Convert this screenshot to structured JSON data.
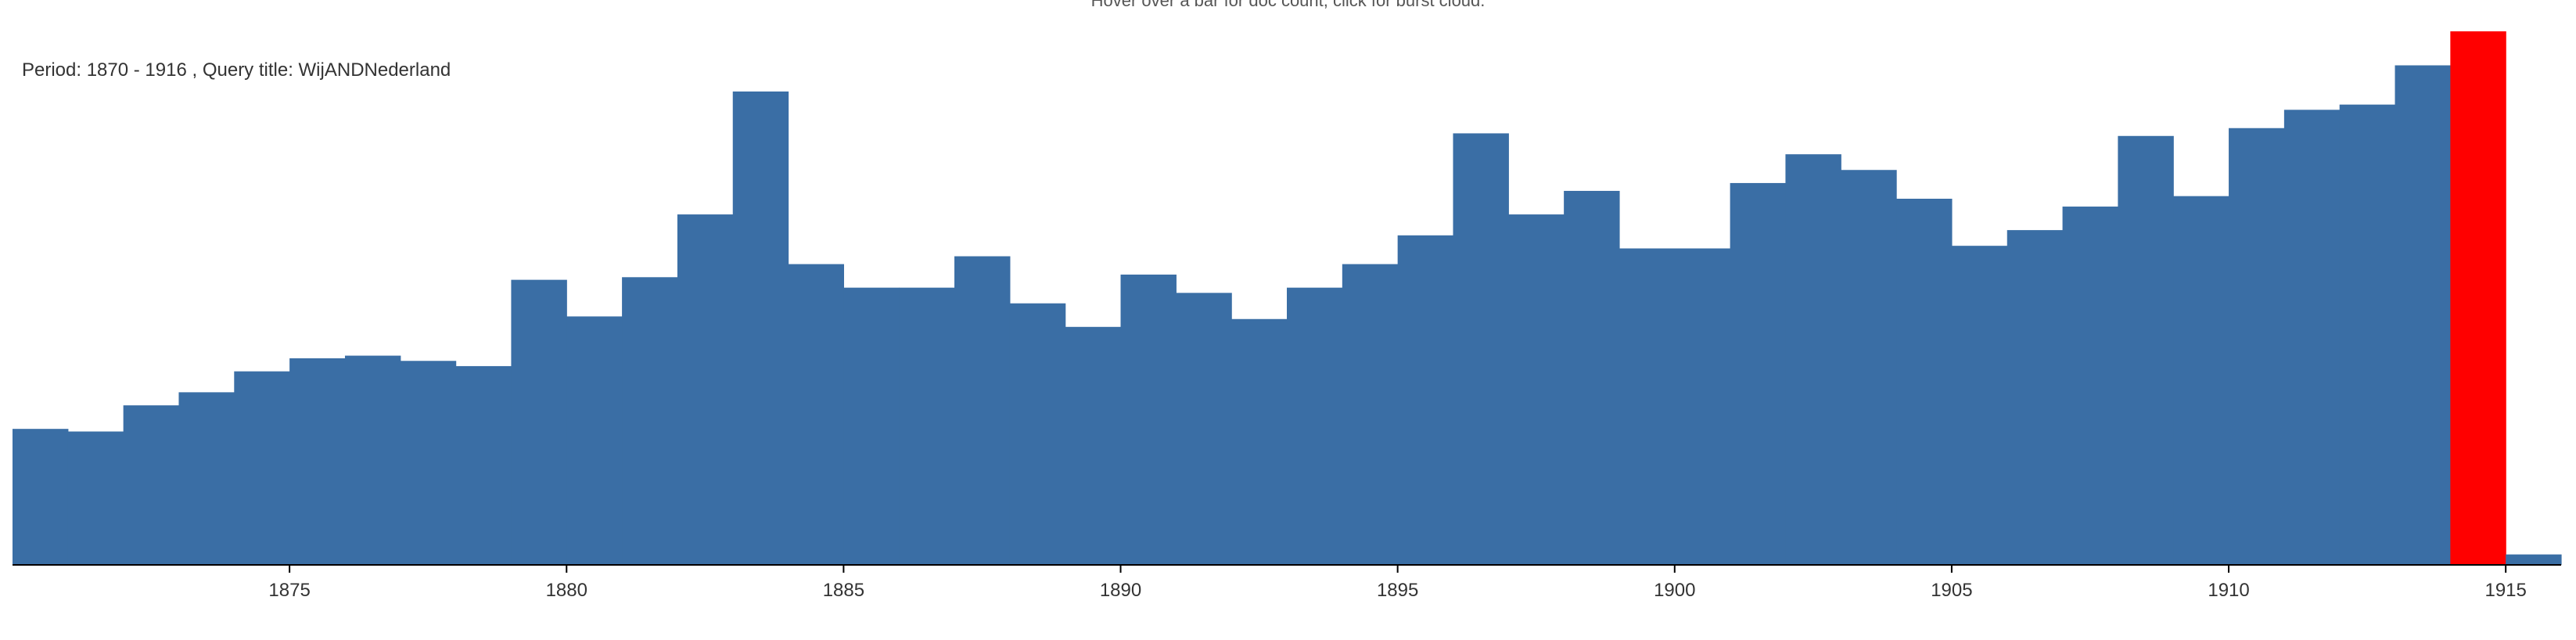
{
  "header": {
    "hint_text": "Hover over a bar for doc count, click for burst cloud.",
    "period_text": "Period: 1870 - 1916 , Query title: WijANDNederland"
  },
  "colors": {
    "bar": "#3a6ea5",
    "highlight": "#ff0000",
    "axis": "#000000"
  },
  "chart_data": {
    "type": "bar",
    "title": "",
    "xlabel": "",
    "ylabel": "",
    "x": [
      1870,
      1871,
      1872,
      1873,
      1874,
      1875,
      1876,
      1877,
      1878,
      1879,
      1880,
      1881,
      1882,
      1883,
      1884,
      1885,
      1886,
      1887,
      1888,
      1889,
      1890,
      1891,
      1892,
      1893,
      1894,
      1895,
      1896,
      1897,
      1898,
      1899,
      1900,
      1901,
      1902,
      1903,
      1904,
      1905,
      1906,
      1907,
      1908,
      1909,
      1910,
      1911,
      1912,
      1913,
      1914,
      1915
    ],
    "values": [
      26,
      25.5,
      30.5,
      33,
      37,
      39.5,
      40,
      39,
      38,
      54.5,
      47.5,
      55,
      67,
      90.5,
      57.5,
      53,
      53,
      59,
      50,
      45.5,
      55.5,
      52,
      47,
      53,
      57.5,
      63,
      82.5,
      67,
      71.5,
      60.5,
      60.5,
      73,
      78.5,
      75.5,
      70,
      61,
      64,
      68.5,
      82,
      70.5,
      83.5,
      87,
      88,
      95.5,
      102,
      2
    ],
    "highlight_index": 44,
    "xtick_labels": [
      "1875",
      "1880",
      "1885",
      "1890",
      "1895",
      "1900",
      "1905",
      "1910",
      "1915"
    ],
    "xtick_values": [
      1875,
      1880,
      1885,
      1890,
      1895,
      1900,
      1905,
      1910,
      1915
    ],
    "x_range": [
      1870,
      1916
    ],
    "ylim": [
      0,
      105
    ],
    "grid": false,
    "legend": "none"
  }
}
